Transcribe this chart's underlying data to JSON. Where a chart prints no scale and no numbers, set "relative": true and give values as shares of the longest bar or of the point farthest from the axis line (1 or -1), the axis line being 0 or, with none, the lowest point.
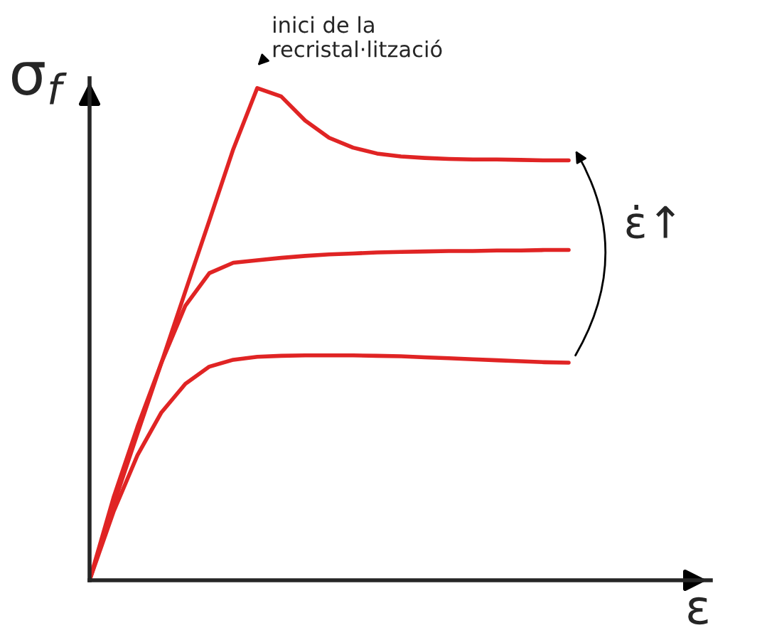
{
  "chart_data": {
    "type": "line",
    "relative": true,
    "xlabel": "ε",
    "ylabel": "σ$_{f}$",
    "categories": [
      null,
      null,
      null,
      null,
      null,
      null,
      null,
      null,
      null,
      null,
      null,
      null,
      null,
      null,
      null,
      null,
      null,
      null,
      null,
      null,
      null
    ],
    "series": [
      {
        "color": "#e02424",
        "values": [
          0,
          0.153,
          0.298,
          0.442,
          0.587,
          0.731,
          0.876,
          1.0,
          0.983,
          0.934,
          0.899,
          0.879,
          0.867,
          0.861,
          0.858,
          0.856,
          0.855,
          0.855,
          0.854,
          0.853,
          0.853
        ]
      },
      {
        "color": "#e02424",
        "values": [
          0,
          0.168,
          0.312,
          0.442,
          0.558,
          0.624,
          0.645,
          0.65,
          0.655,
          0.659,
          0.662,
          0.664,
          0.666,
          0.667,
          0.668,
          0.669,
          0.669,
          0.67,
          0.67,
          0.671,
          0.671
        ]
      },
      {
        "color": "#e02424",
        "values": [
          0,
          0.139,
          0.254,
          0.341,
          0.399,
          0.434,
          0.448,
          0.454,
          0.456,
          0.457,
          0.457,
          0.457,
          0.456,
          0.455,
          0.453,
          0.451,
          0.449,
          0.447,
          0.445,
          0.443,
          0.442
        ]
      }
    ],
    "annotations": [
      "inici de la\nrecristal·lització",
      "ε̇↑"
    ]
  }
}
